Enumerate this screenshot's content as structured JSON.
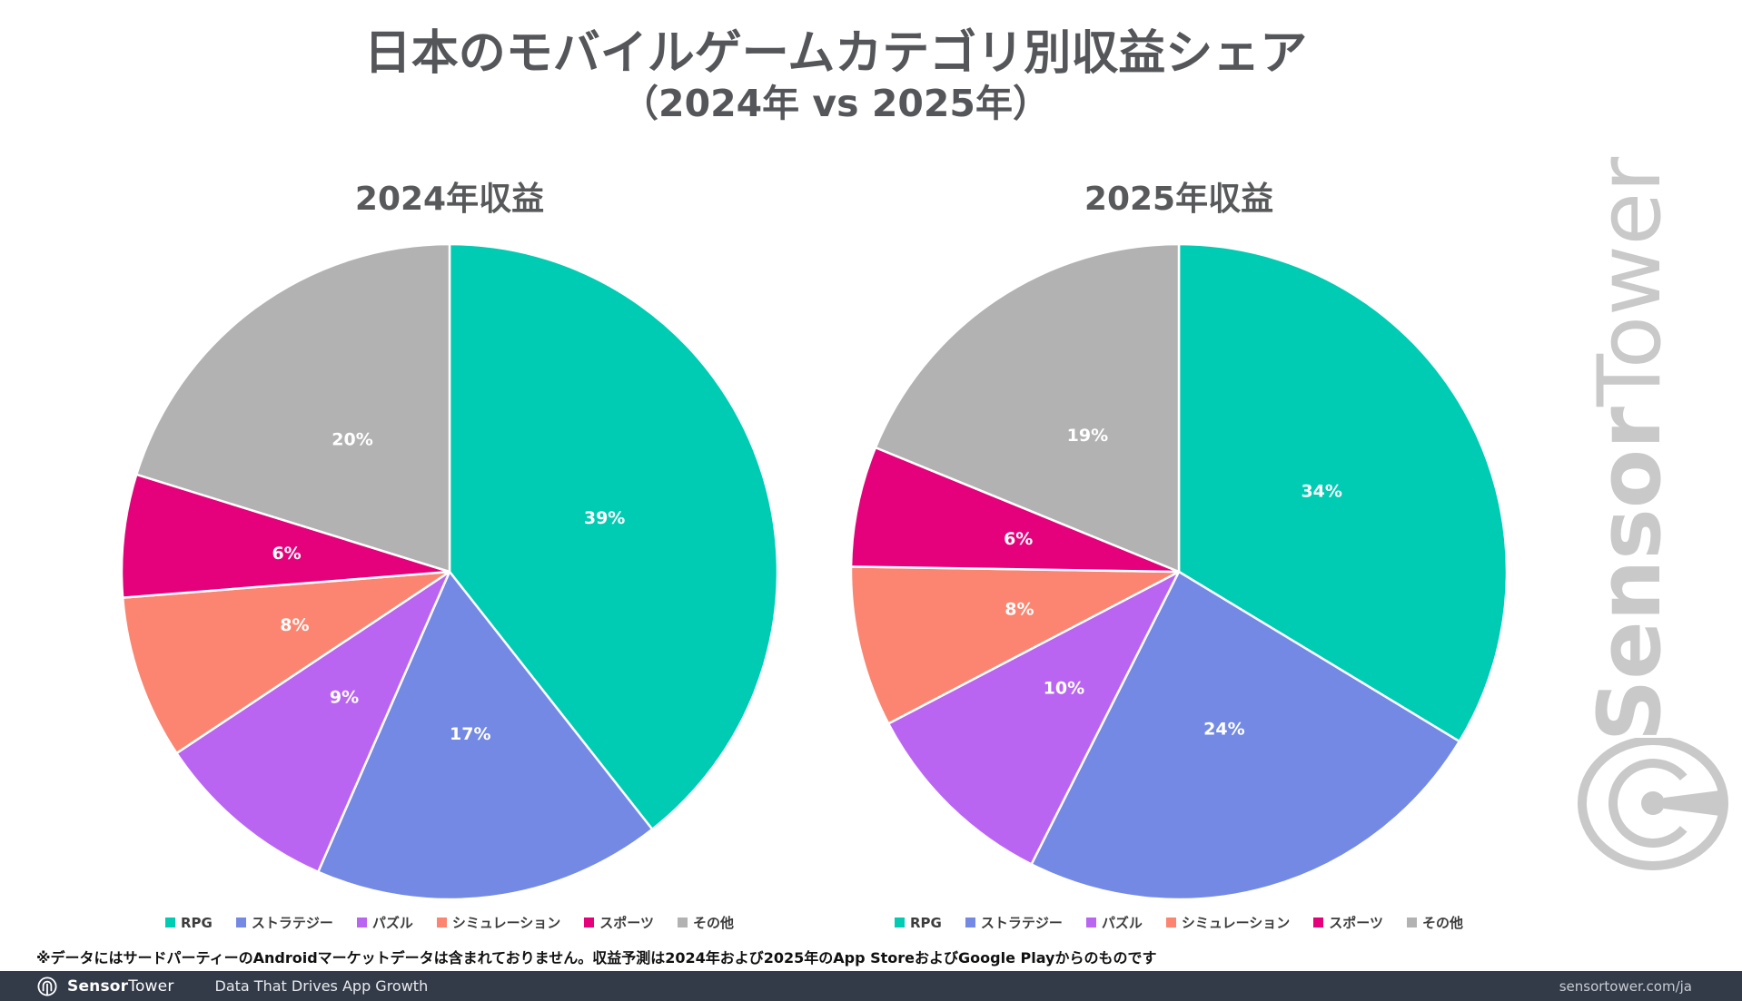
{
  "page": {
    "title_line1": "日本のモバイルゲームカテゴリ別収益シェア",
    "title_line2": "（2024年 vs 2025年）"
  },
  "chart_data": [
    {
      "type": "pie",
      "title": "2024年収益",
      "categories": [
        "RPG",
        "ストラテジー",
        "パズル",
        "シミュレーション",
        "スポーツ",
        "その他"
      ],
      "values": [
        39,
        17,
        9,
        8,
        6,
        20
      ],
      "unit": "%",
      "colors": [
        "#00CBB3",
        "#7389E4",
        "#BA65F2",
        "#FB8570",
        "#E4017B",
        "#B3B2B2"
      ],
      "start_angle": "12-oclock",
      "direction": "clockwise",
      "legend_position": "bottom",
      "slice_label_color": "#FFFFFF"
    },
    {
      "type": "pie",
      "title": "2025年収益",
      "categories": [
        "RPG",
        "ストラテジー",
        "パズル",
        "シミュレーション",
        "スポーツ",
        "その他"
      ],
      "values": [
        34,
        24,
        10,
        8,
        6,
        19
      ],
      "unit": "%",
      "colors": [
        "#00CBB3",
        "#7389E4",
        "#BA65F2",
        "#FB8570",
        "#E4017B",
        "#B3B2B2"
      ],
      "start_angle": "12-oclock",
      "direction": "clockwise",
      "legend_position": "bottom",
      "slice_label_color": "#FFFFFF"
    }
  ],
  "footnote": "※データにはサードパーティーのAndroidマーケットデータは含まれておりません。収益予測は2024年および2025年のApp StoreおよびGoogle Playからのものです",
  "footer": {
    "brand_bold": "Sensor",
    "brand_light": "Tower",
    "tagline": "Data That Drives App Growth",
    "url": "sensortower.com/ja"
  },
  "watermark": {
    "brand_bold": "Sensor",
    "brand_light": "Tower"
  },
  "colors": {
    "title_text": "#55565A",
    "chart_title_text": "#58595B",
    "footer_bar_bg": "#343B48",
    "footer_text": "#FFFFFF",
    "watermark": "#C9C9C9",
    "slice_stroke": "#FFFFFF"
  }
}
